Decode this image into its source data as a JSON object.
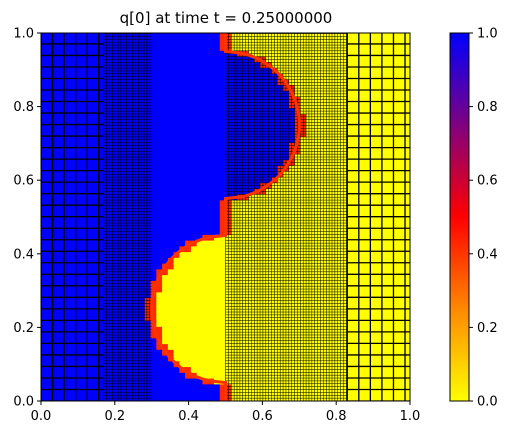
{
  "chart_data": {
    "type": "heatmap",
    "title": "q[0] at time t =      0.25000000",
    "xlabel": "",
    "ylabel": "",
    "xlim": [
      0,
      1
    ],
    "ylim": [
      0,
      1
    ],
    "x_ticks": [
      "0.0",
      "0.2",
      "0.4",
      "0.6",
      "0.8",
      "1.0"
    ],
    "y_ticks": [
      "0.0",
      "0.2",
      "0.4",
      "0.6",
      "0.8",
      "1.0"
    ],
    "colorbar": {
      "range": [
        0,
        1
      ],
      "ticks": [
        "0.0",
        "0.2",
        "0.4",
        "0.6",
        "0.8",
        "1.0"
      ],
      "colors": [
        "#ffff00",
        "#ff8800",
        "#ff0000",
        "#800080",
        "#0000ff"
      ]
    },
    "field": {
      "low_value_color": "#ffff00",
      "high_value_color": "#0000ff",
      "interface": {
        "lower_lobe": {
          "center_x": 0.5,
          "center_y": 0.25,
          "radius": 0.2
        },
        "upper_lobe": {
          "center_x": 0.5,
          "center_y": 0.75,
          "radius": 0.2
        },
        "connector_y": 0.5
      }
    },
    "amr_grid": {
      "coarse_cell": 0.0313,
      "medium_cell": 0.0156,
      "fine_cell": 0.0078,
      "fine_band_x": [
        [
          0.17,
          0.3
        ],
        [
          0.5,
          0.83
        ]
      ],
      "coarse_band_x": [
        [
          0.0,
          0.17
        ],
        [
          0.83,
          1.0
        ]
      ]
    }
  }
}
